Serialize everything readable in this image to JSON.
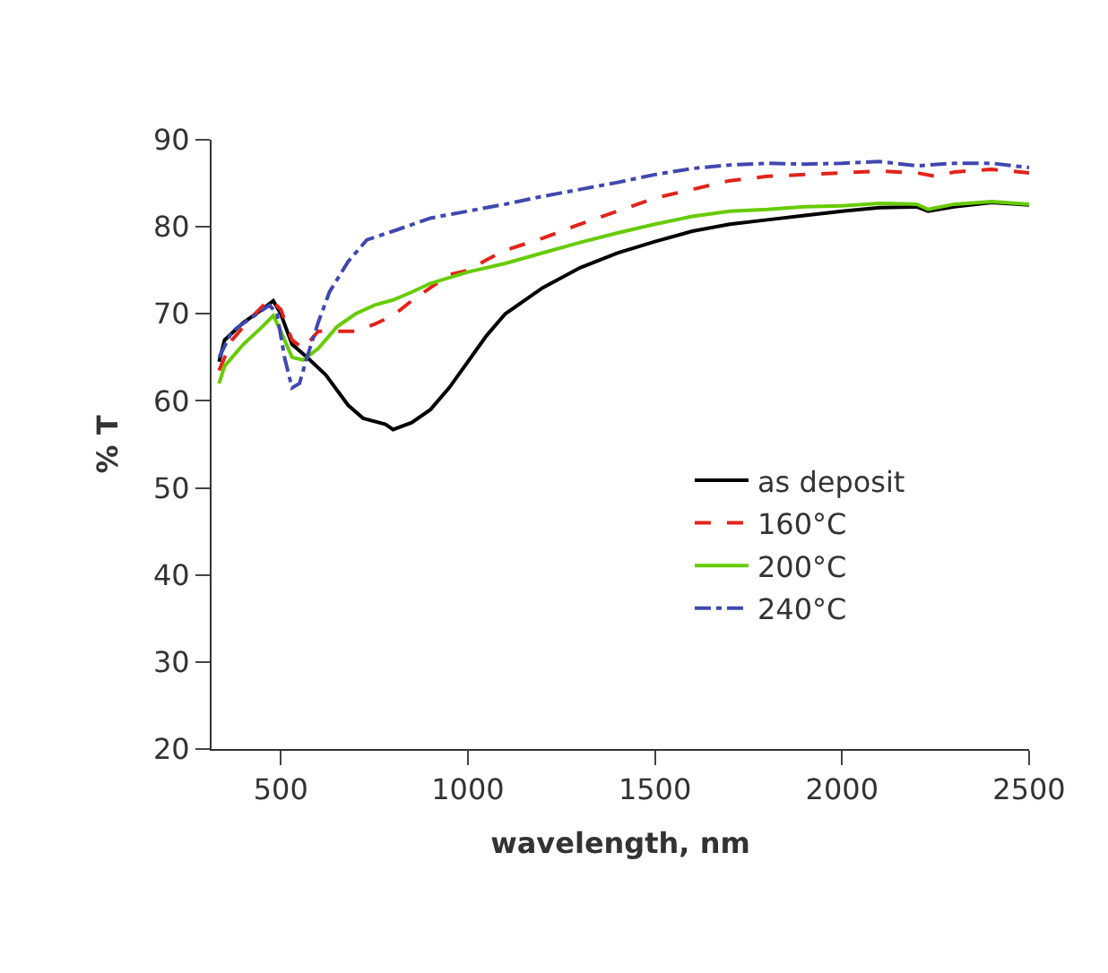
{
  "chart_data": {
    "type": "line",
    "xlabel": "wavelength, nm",
    "ylabel": "% T",
    "xlim": [
      315,
      2500
    ],
    "xticks": [
      500,
      1000,
      1500,
      2000,
      2500
    ],
    "ylim": [
      20,
      90
    ],
    "yticks": [
      20,
      30,
      40,
      50,
      60,
      70,
      80,
      90
    ],
    "legend": "center right",
    "marker": "none",
    "series": [
      {
        "name": "as deposit",
        "color": "#000000",
        "line_style": "solid",
        "x": [
          335,
          350,
          400,
          450,
          480,
          500,
          530,
          570,
          620,
          680,
          720,
          780,
          800,
          850,
          900,
          950,
          1000,
          1050,
          1100,
          1200,
          1300,
          1400,
          1500,
          1600,
          1700,
          1800,
          1900,
          2000,
          2100,
          2200,
          2230,
          2300,
          2400,
          2500
        ],
        "values": [
          64.5,
          67,
          69,
          70.5,
          71.5,
          70,
          66.5,
          65,
          63,
          59.5,
          58,
          57.3,
          56.7,
          57.5,
          59,
          61.5,
          64.5,
          67.5,
          70,
          73,
          75.3,
          77,
          78.3,
          79.5,
          80.3,
          80.8,
          81.3,
          81.8,
          82.2,
          82.3,
          81.8,
          82.3,
          82.8,
          82.5
        ]
      },
      {
        "name": "160°C",
        "color": "#e2231a",
        "line_style": "dashed",
        "x": [
          335,
          370,
          420,
          470,
          500,
          530,
          560,
          600,
          700,
          750,
          800,
          850,
          900,
          950,
          1000,
          1050,
          1100,
          1200,
          1300,
          1400,
          1500,
          1600,
          1700,
          1800,
          1900,
          2000,
          2100,
          2200,
          2250,
          2300,
          2400,
          2500
        ],
        "values": [
          63.5,
          67,
          69.5,
          71.7,
          70.5,
          67,
          66,
          68,
          68,
          68.8,
          69.8,
          71.5,
          73,
          74.5,
          75,
          76.2,
          77.3,
          78.7,
          80.3,
          81.8,
          83.3,
          84.3,
          85.3,
          85.8,
          86,
          86.2,
          86.4,
          86.2,
          85.8,
          86.3,
          86.6,
          86.2
        ]
      },
      {
        "name": "200°C",
        "color": "#66cc00",
        "line_style": "solid",
        "x": [
          335,
          350,
          400,
          450,
          480,
          500,
          530,
          560,
          600,
          650,
          700,
          750,
          800,
          850,
          900,
          1000,
          1100,
          1200,
          1300,
          1400,
          1500,
          1600,
          1700,
          1800,
          1900,
          2000,
          2100,
          2200,
          2230,
          2300,
          2400,
          2500
        ],
        "values": [
          62,
          64,
          66.5,
          68.5,
          69.8,
          68,
          65,
          64.7,
          66,
          68.5,
          70,
          71,
          71.6,
          72.5,
          73.5,
          74.8,
          75.8,
          77,
          78.2,
          79.3,
          80.3,
          81.2,
          81.8,
          82,
          82.3,
          82.4,
          82.7,
          82.6,
          82,
          82.6,
          82.9,
          82.6
        ]
      },
      {
        "name": "240°C",
        "color": "#3f48b0",
        "line_style": "dashdot",
        "x": [
          335,
          370,
          420,
          470,
          490,
          510,
          530,
          550,
          570,
          600,
          630,
          680,
          730,
          800,
          900,
          1000,
          1100,
          1200,
          1300,
          1400,
          1500,
          1600,
          1700,
          1800,
          1900,
          2000,
          2100,
          2200,
          2300,
          2400,
          2500
        ],
        "values": [
          65,
          68,
          69.5,
          71,
          70,
          65,
          61.5,
          62,
          65,
          69,
          72.5,
          76,
          78.5,
          79.5,
          81,
          81.8,
          82.6,
          83.5,
          84.3,
          85.1,
          86,
          86.7,
          87.1,
          87.3,
          87.2,
          87.3,
          87.5,
          87,
          87.3,
          87.3,
          86.8
        ]
      }
    ]
  }
}
